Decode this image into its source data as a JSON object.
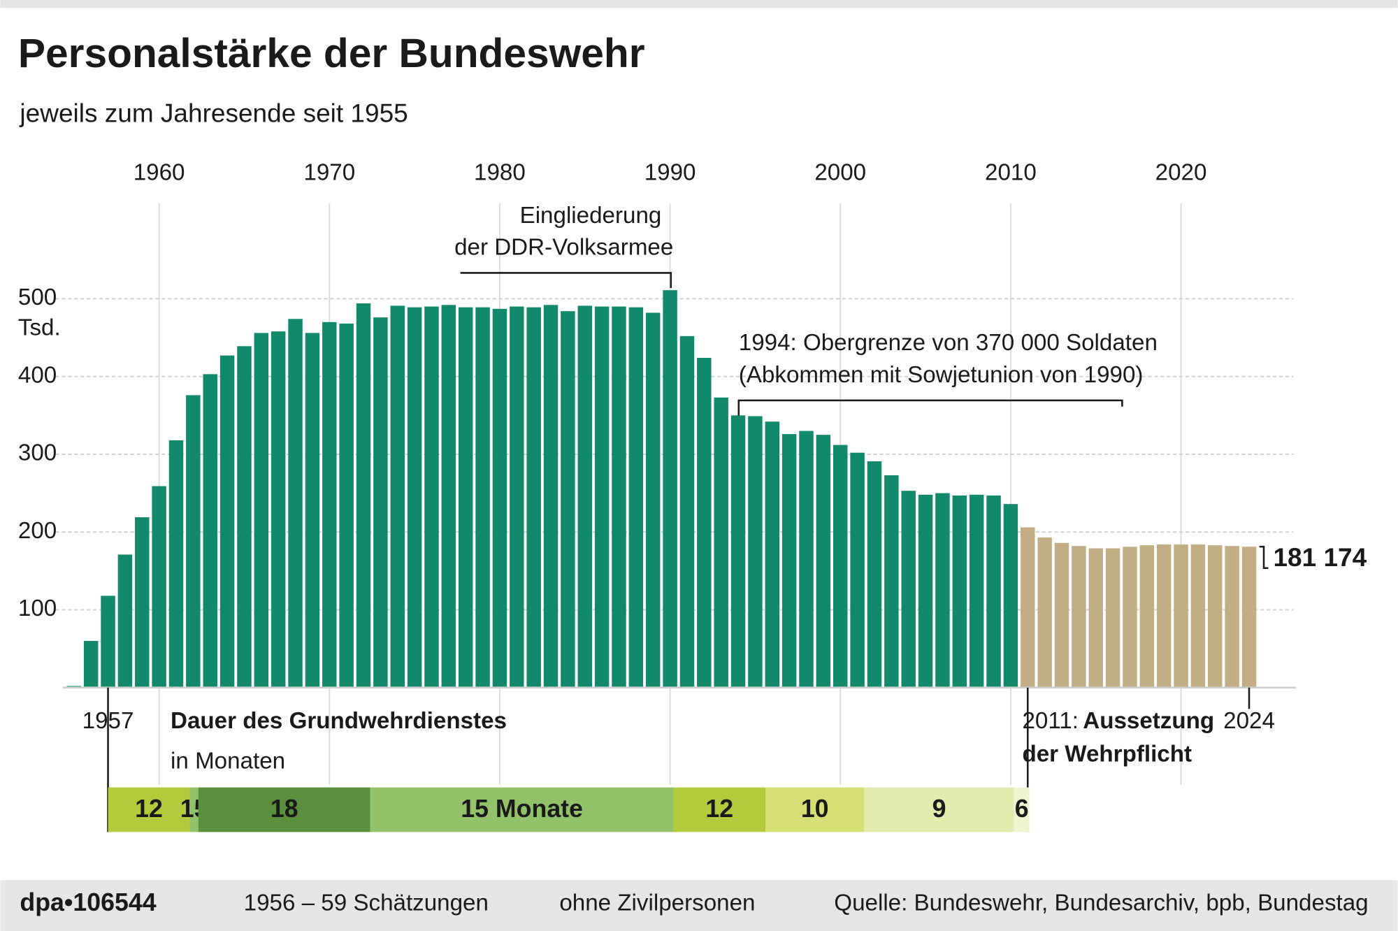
{
  "chart_data": {
    "type": "bar",
    "title": "Personalstärke der Bundeswehr",
    "subtitle": "jeweils zum Jahresende seit 1955",
    "x": [
      1955,
      1956,
      1957,
      1958,
      1959,
      1960,
      1961,
      1962,
      1963,
      1964,
      1965,
      1966,
      1967,
      1968,
      1969,
      1970,
      1971,
      1972,
      1973,
      1974,
      1975,
      1976,
      1977,
      1978,
      1979,
      1980,
      1981,
      1982,
      1983,
      1984,
      1985,
      1986,
      1987,
      1988,
      1989,
      1990,
      1991,
      1992,
      1993,
      1994,
      1995,
      1996,
      1997,
      1998,
      1999,
      2000,
      2001,
      2002,
      2003,
      2004,
      2005,
      2006,
      2007,
      2008,
      2009,
      2010,
      2011,
      2012,
      2013,
      2014,
      2015,
      2016,
      2017,
      2018,
      2019,
      2020,
      2021,
      2022,
      2023,
      2024
    ],
    "values": [
      2,
      60,
      118,
      171,
      219,
      259,
      318,
      376,
      403,
      427,
      439,
      456,
      458,
      474,
      456,
      470,
      468,
      494,
      476,
      491,
      489,
      490,
      492,
      489,
      489,
      487,
      490,
      489,
      492,
      484,
      491,
      490,
      490,
      489,
      482,
      511,
      452,
      424,
      373,
      350,
      349,
      342,
      326,
      330,
      325,
      312,
      302,
      291,
      273,
      253,
      248,
      250,
      247,
      248,
      247,
      236,
      206,
      193,
      186,
      182,
      179,
      179,
      181,
      183,
      184,
      184,
      184,
      183,
      182,
      181.174
    ],
    "value_labels": [
      null,
      null,
      null,
      null,
      null,
      null,
      null,
      null,
      null,
      null,
      null,
      null,
      null,
      null,
      null,
      null,
      null,
      null,
      null,
      null,
      null,
      null,
      null,
      null,
      null,
      null,
      null,
      null,
      null,
      null,
      null,
      null,
      null,
      null,
      null,
      null,
      null,
      null,
      null,
      null,
      null,
      null,
      null,
      null,
      null,
      null,
      null,
      null,
      null,
      null,
      null,
      null,
      null,
      null,
      null,
      null,
      null,
      null,
      null,
      null,
      null,
      null,
      null,
      null,
      null,
      null,
      null,
      null,
      null,
      "181 174"
    ],
    "color": "#12896a",
    "color_late": "#c3ad85",
    "color_late_from": 2011,
    "xlim": [
      1954.6,
      2026.6
    ],
    "xticks": [
      1960,
      1970,
      1980,
      1990,
      2000,
      2010,
      2020
    ],
    "ylim": [
      0,
      625
    ],
    "yticks": [
      100,
      200,
      300,
      400,
      500
    ],
    "y_unit": "Tsd.",
    "grid": true,
    "annotations": {
      "ddr": [
        "Eingliederung",
        "der DDR-Volksarmee"
      ],
      "limit": [
        "1994: Obergrenze von 370 000 Soldaten",
        "(Abkommen mit Sowjetunion von 1990)"
      ],
      "suspension_year": "2011:",
      "suspension": [
        "Aussetzung",
        "der Wehrpflicht"
      ]
    },
    "service": {
      "title": "Dauer des Grundwehrdienstes",
      "subtitle": "in Monaten",
      "segments": [
        {
          "from": 1957,
          "to": 1961.8,
          "label": "12",
          "color": "#b3ca3c"
        },
        {
          "from": 1961.8,
          "to": 1962.3,
          "label": "15",
          "color": "#93c16a"
        },
        {
          "from": 1962.3,
          "to": 1972.4,
          "label": "18",
          "color": "#5b8f3d"
        },
        {
          "from": 1972.4,
          "to": 1990.2,
          "label": "15 Monate",
          "color": "#93c16a"
        },
        {
          "from": 1990.2,
          "to": 1995.6,
          "label": "12",
          "color": "#b3ca3c"
        },
        {
          "from": 1995.6,
          "to": 2001.4,
          "label": "10",
          "color": "#d6df74"
        },
        {
          "from": 2001.4,
          "to": 2010.2,
          "label": "9",
          "color": "#e4ebae"
        },
        {
          "from": 2010.2,
          "to": 2011.1,
          "label": "6",
          "color": "#eef3d0"
        }
      ]
    },
    "footer": {
      "id": "dpa•106544",
      "note1": "1956 – 59 Schätzungen",
      "note2": "ohne Zivilpersonen",
      "source": "Quelle: Bundeswehr, Bundesarchiv, bpb, Bundestag"
    }
  }
}
